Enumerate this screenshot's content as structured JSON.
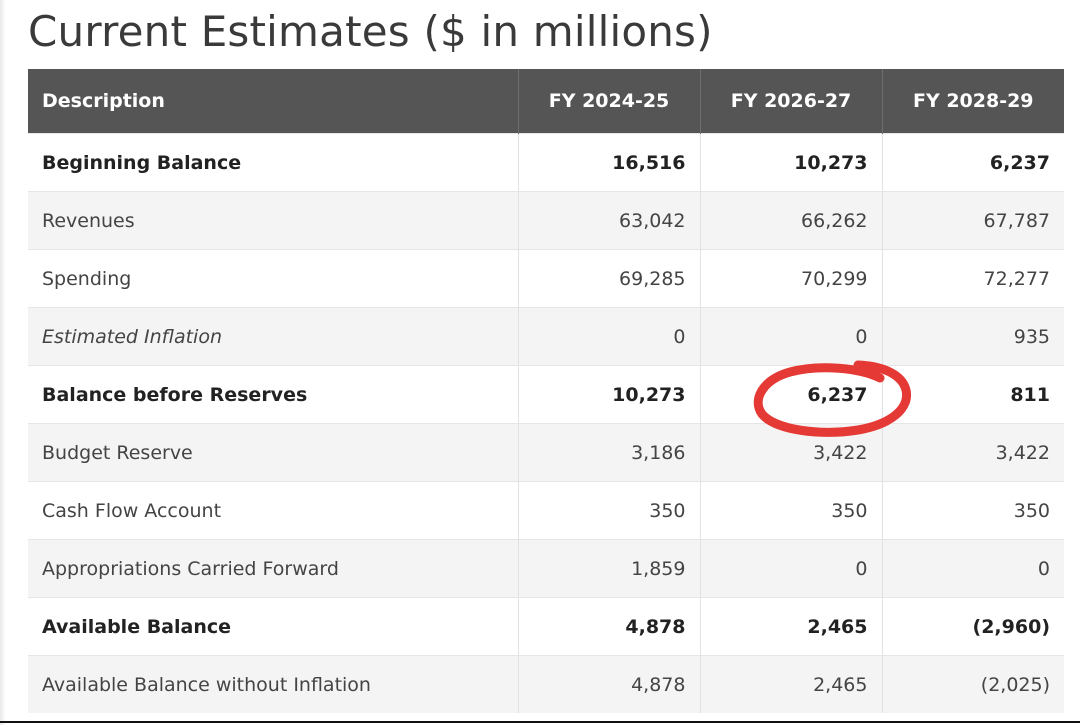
{
  "title": "Current Estimates ($ in millions)",
  "table": {
    "headers": [
      "Description",
      "FY 2024-25",
      "FY 2026-27",
      "FY 2028-29"
    ],
    "rows": [
      {
        "label": "Beginning Balance",
        "values": [
          "16,516",
          "10,273",
          "6,237"
        ],
        "style": "bold"
      },
      {
        "label": "Revenues",
        "values": [
          "63,042",
          "66,262",
          "67,787"
        ],
        "style": "normal"
      },
      {
        "label": "Spending",
        "values": [
          "69,285",
          "70,299",
          "72,277"
        ],
        "style": "normal"
      },
      {
        "label": "Estimated Inflation",
        "values": [
          "0",
          "0",
          "935"
        ],
        "style": "italic"
      },
      {
        "label": "Balance before Reserves",
        "values": [
          "10,273",
          "6,237",
          "811"
        ],
        "style": "bold"
      },
      {
        "label": "Budget Reserve",
        "values": [
          "3,186",
          "3,422",
          "3,422"
        ],
        "style": "normal"
      },
      {
        "label": "Cash Flow Account",
        "values": [
          "350",
          "350",
          "350"
        ],
        "style": "normal"
      },
      {
        "label": "Appropriations Carried Forward",
        "values": [
          "1,859",
          "0",
          "0"
        ],
        "style": "normal"
      },
      {
        "label": "Available Balance",
        "values": [
          "4,878",
          "2,465",
          "(2,960)"
        ],
        "style": "bold"
      },
      {
        "label": "Available Balance without Inflation",
        "values": [
          "4,878",
          "2,465",
          "(2,025)"
        ],
        "style": "normal"
      }
    ]
  },
  "annotation": {
    "color": "#e53935",
    "shape": "hand-drawn circle",
    "target": "Balance before Reserves / FY 2026-27"
  }
}
